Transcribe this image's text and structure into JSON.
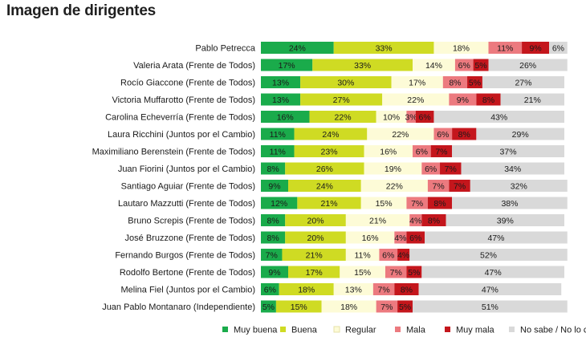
{
  "title": "Imagen de dirigentes",
  "chart_data": {
    "type": "bar",
    "orientation": "horizontal",
    "stacked": true,
    "title": "Imagen de dirigentes",
    "xlim": [
      0,
      100
    ],
    "grid": false,
    "legend_position": "bottom",
    "categories": [
      "Pablo Petrecca",
      "Valeria Arata (Frente de Todos)",
      "Rocío Giaccone (Frente de Todos)",
      "Victoria Muffarotto (Frente de Todos)",
      "Carolina Echeverría (Frente de Todos)",
      "Laura Ricchini (Juntos por el Cambio)",
      "Maximiliano Berenstein (Frente de Todos)",
      "Juan Fiorini (Juntos por el Cambio)",
      "Santiago Aguiar (Frente de Todos)",
      "Lautaro Mazzutti (Frente de Todos)",
      "Bruno Screpis (Frente de Todos)",
      "José Bruzzone (Frente de Todos)",
      "Fernando Burgos  (Frente de Todos)",
      "Rodolfo Bertone (Frente de Todos)",
      "Melina Fiel (Juntos por el Cambio)",
      "Juan Pablo Montanaro (Independiente)"
    ],
    "series": [
      {
        "name": "Muy buena",
        "color": "#1aab4b",
        "values": [
          24,
          17,
          13,
          13,
          16,
          11,
          11,
          8,
          9,
          12,
          8,
          8,
          7,
          9,
          6,
          5
        ]
      },
      {
        "name": "Buena",
        "color": "#cfdb23",
        "values": [
          33,
          33,
          30,
          27,
          22,
          24,
          23,
          26,
          24,
          21,
          20,
          20,
          21,
          17,
          18,
          15
        ]
      },
      {
        "name": "Regular",
        "color": "#fdfbd7",
        "values": [
          18,
          14,
          17,
          22,
          10,
          22,
          16,
          19,
          22,
          15,
          21,
          16,
          11,
          15,
          13,
          18
        ]
      },
      {
        "name": "Mala",
        "color": "#ec7a7f",
        "values": [
          11,
          6,
          8,
          9,
          3,
          6,
          6,
          6,
          7,
          7,
          4,
          4,
          6,
          7,
          7,
          7
        ]
      },
      {
        "name": "Muy mala",
        "color": "#c4161c",
        "values": [
          9,
          5,
          5,
          8,
          6,
          8,
          7,
          7,
          7,
          8,
          8,
          6,
          4,
          5,
          8,
          5
        ]
      },
      {
        "name": "No sabe / No lo conoce",
        "color": "#d9d9d9",
        "values": [
          6,
          26,
          27,
          21,
          43,
          29,
          37,
          34,
          32,
          38,
          39,
          47,
          52,
          47,
          47,
          51
        ]
      }
    ]
  }
}
